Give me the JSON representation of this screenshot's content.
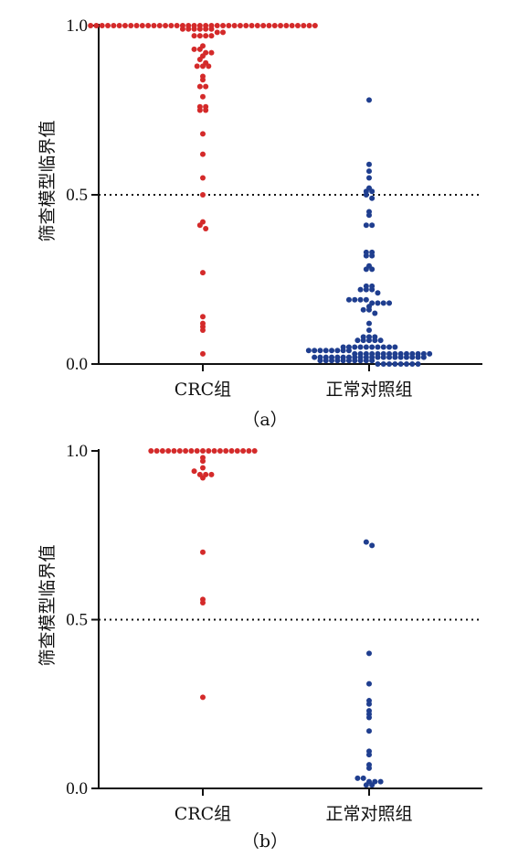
{
  "chart_data": [
    {
      "type": "scatter",
      "subtype": "beeswarm",
      "caption": "（a）",
      "ylabel": "筛查模型临界值",
      "categories": [
        "CRC组",
        "正常对照组"
      ],
      "yticks": [
        "0.0",
        "0.5",
        "1.0"
      ],
      "ylim": [
        0,
        1
      ],
      "threshold": 0.5,
      "threshold_style": "dotted",
      "series": [
        {
          "category": "CRC组",
          "color": "#d42a2a",
          "values": [
            1.0,
            1.0,
            1.0,
            1.0,
            1.0,
            1.0,
            1.0,
            1.0,
            1.0,
            1.0,
            1.0,
            1.0,
            1.0,
            1.0,
            1.0,
            1.0,
            1.0,
            1.0,
            1.0,
            1.0,
            1.0,
            1.0,
            1.0,
            1.0,
            1.0,
            1.0,
            1.0,
            1.0,
            1.0,
            1.0,
            1.0,
            1.0,
            1.0,
            1.0,
            1.0,
            1.0,
            1.0,
            1.0,
            1.0,
            1.0,
            0.99,
            0.99,
            0.99,
            0.99,
            0.99,
            0.99,
            0.98,
            0.98,
            0.97,
            0.97,
            0.97,
            0.97,
            0.94,
            0.93,
            0.93,
            0.92,
            0.92,
            0.91,
            0.9,
            0.89,
            0.88,
            0.88,
            0.88,
            0.85,
            0.84,
            0.82,
            0.82,
            0.79,
            0.76,
            0.76,
            0.75,
            0.75,
            0.68,
            0.62,
            0.55,
            0.5,
            0.42,
            0.41,
            0.4,
            0.27,
            0.14,
            0.12,
            0.11,
            0.1,
            0.03
          ]
        },
        {
          "category": "正常对照组",
          "color": "#1f3e8f",
          "values": [
            0.78,
            0.59,
            0.57,
            0.55,
            0.52,
            0.51,
            0.51,
            0.5,
            0.49,
            0.45,
            0.44,
            0.41,
            0.41,
            0.33,
            0.33,
            0.32,
            0.32,
            0.29,
            0.28,
            0.28,
            0.23,
            0.23,
            0.22,
            0.22,
            0.22,
            0.21,
            0.19,
            0.19,
            0.19,
            0.19,
            0.18,
            0.18,
            0.18,
            0.18,
            0.17,
            0.16,
            0.16,
            0.15,
            0.12,
            0.1,
            0.08,
            0.08,
            0.08,
            0.07,
            0.07,
            0.07,
            0.07,
            0.07,
            0.05,
            0.05,
            0.05,
            0.05,
            0.05,
            0.05,
            0.05,
            0.05,
            0.05,
            0.05,
            0.04,
            0.04,
            0.04,
            0.04,
            0.04,
            0.04,
            0.04,
            0.04,
            0.03,
            0.03,
            0.03,
            0.03,
            0.03,
            0.03,
            0.03,
            0.03,
            0.03,
            0.03,
            0.03,
            0.03,
            0.03,
            0.03,
            0.02,
            0.02,
            0.02,
            0.02,
            0.02,
            0.02,
            0.02,
            0.02,
            0.02,
            0.02,
            0.02,
            0.02,
            0.02,
            0.02,
            0.02,
            0.02,
            0.02,
            0.02,
            0.02,
            0.02,
            0.01,
            0.01,
            0.01,
            0.01,
            0.01,
            0.01,
            0.01,
            0.01,
            0.01,
            0.01,
            0.0,
            0.0,
            0.0,
            0.0,
            0.0,
            0.0,
            0.0,
            0.0
          ]
        }
      ]
    },
    {
      "type": "scatter",
      "subtype": "beeswarm",
      "caption": "（b）",
      "ylabel": "筛查模型临界值",
      "categories": [
        "CRC组",
        "正常对照组"
      ],
      "yticks": [
        "0.0",
        "0.5",
        "1.0"
      ],
      "ylim": [
        0,
        1
      ],
      "threshold": 0.5,
      "threshold_style": "dotted",
      "series": [
        {
          "category": "CRC组",
          "color": "#d42a2a",
          "values": [
            1.0,
            1.0,
            1.0,
            1.0,
            1.0,
            1.0,
            1.0,
            1.0,
            1.0,
            1.0,
            1.0,
            1.0,
            1.0,
            1.0,
            1.0,
            1.0,
            1.0,
            1.0,
            1.0,
            0.98,
            0.97,
            0.95,
            0.94,
            0.93,
            0.93,
            0.93,
            0.92,
            0.7,
            0.56,
            0.55,
            0.27
          ]
        },
        {
          "category": "正常对照组",
          "color": "#1f3e8f",
          "values": [
            0.73,
            0.72,
            0.4,
            0.31,
            0.26,
            0.25,
            0.23,
            0.22,
            0.21,
            0.17,
            0.11,
            0.1,
            0.07,
            0.06,
            0.03,
            0.03,
            0.02,
            0.02,
            0.02,
            0.01,
            0.01
          ]
        }
      ]
    }
  ]
}
